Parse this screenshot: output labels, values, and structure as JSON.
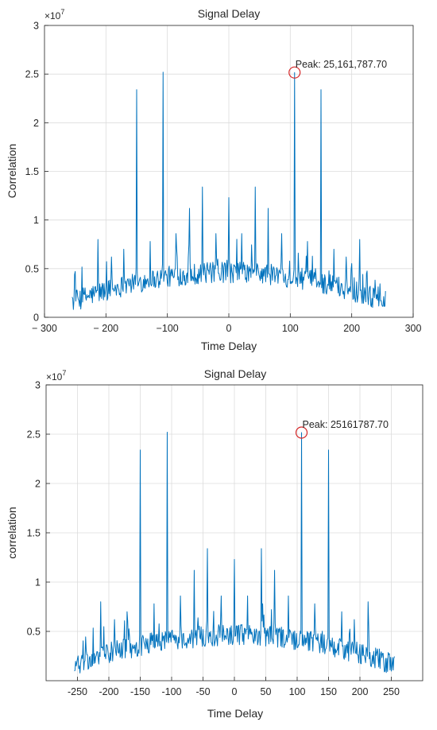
{
  "figures": [
    {
      "title": "Signal Delay",
      "xlabel": "Time Delay",
      "ylabel": "Correlation",
      "exponent_base": "×10",
      "exponent_power": "7",
      "annotation": "Peak: 25,161,787.70"
    },
    {
      "title": "Signal Delay",
      "xlabel": "Time Delay",
      "ylabel": "correlation",
      "exponent_base": "×10",
      "exponent_power": "7",
      "annotation": "Peak: 25161787.70"
    }
  ],
  "colors": {
    "line": "#0072BD",
    "marker": "#D62728",
    "grid": "#DCDCDC",
    "axis": "#262626"
  },
  "chart_data": [
    {
      "type": "line",
      "title": "Signal Delay",
      "xlabel": "Time Delay",
      "ylabel": "Correlation",
      "xlim": [
        -300,
        300
      ],
      "ylim": [
        0,
        30000000
      ],
      "x_ticks": [
        -300,
        -200,
        -100,
        0,
        100,
        200,
        300
      ],
      "x_tick_labels": [
        "− 300",
        "− 200",
        "−100",
        "0",
        "100",
        "200",
        "300"
      ],
      "y_ticks": [
        0,
        5000000,
        10000000,
        15000000,
        20000000,
        25000000,
        30000000
      ],
      "y_tick_labels": [
        "0",
        "0.5",
        "1",
        "1.5",
        "2",
        "2.5",
        "3"
      ],
      "grid": true,
      "series": [
        {
          "x_range": [
            -255,
            255
          ],
          "baseline": {
            "center": 4500000,
            "edge": 1500000
          },
          "peaks": [
            {
              "x": -213,
              "y": 8000000
            },
            {
              "x": -191,
              "y": 6200000
            },
            {
              "x": -171,
              "y": 7000000
            },
            {
              "x": -150,
              "y": 23400000
            },
            {
              "x": -128,
              "y": 7800000
            },
            {
              "x": -107,
              "y": 25200000
            },
            {
              "x": -86,
              "y": 8600000
            },
            {
              "x": -64,
              "y": 11200000
            },
            {
              "x": -43,
              "y": 13400000
            },
            {
              "x": -21,
              "y": 8600000
            },
            {
              "x": 0,
              "y": 12300000
            },
            {
              "x": 21,
              "y": 8600000
            },
            {
              "x": 43,
              "y": 13400000
            },
            {
              "x": 64,
              "y": 11200000
            },
            {
              "x": 86,
              "y": 8600000
            },
            {
              "x": 107,
              "y": 25161787.7
            },
            {
              "x": 128,
              "y": 7800000
            },
            {
              "x": 150,
              "y": 23400000
            },
            {
              "x": 171,
              "y": 7000000
            },
            {
              "x": 191,
              "y": 6200000
            },
            {
              "x": 213,
              "y": 8000000
            }
          ]
        }
      ],
      "annotation": {
        "text": "Peak: 25,161,787.70",
        "x": 107,
        "y": 25161787.7
      }
    },
    {
      "type": "line",
      "title": "Signal Delay",
      "xlabel": "Time Delay",
      "ylabel": "correlation",
      "xlim": [
        -300,
        300
      ],
      "ylim": [
        0,
        30000000
      ],
      "x_ticks": [
        -250,
        -200,
        -150,
        -100,
        -50,
        0,
        50,
        100,
        150,
        200,
        250
      ],
      "x_tick_labels": [
        "-250",
        "-200",
        "-150",
        "-100",
        "-50",
        "0",
        "50",
        "100",
        "150",
        "200",
        "250"
      ],
      "y_ticks": [
        5000000,
        10000000,
        15000000,
        20000000,
        25000000,
        30000000
      ],
      "y_tick_labels": [
        "0.5",
        "1",
        "1.5",
        "2",
        "2.5",
        "3"
      ],
      "grid": true,
      "series": [
        {
          "x_range": [
            -255,
            255
          ],
          "baseline": {
            "center": 4500000,
            "edge": 1500000
          },
          "peaks": [
            {
              "x": -213,
              "y": 8000000
            },
            {
              "x": -191,
              "y": 6200000
            },
            {
              "x": -171,
              "y": 7000000
            },
            {
              "x": -150,
              "y": 23400000
            },
            {
              "x": -128,
              "y": 7800000
            },
            {
              "x": -107,
              "y": 25200000
            },
            {
              "x": -86,
              "y": 8600000
            },
            {
              "x": -64,
              "y": 11200000
            },
            {
              "x": -43,
              "y": 13400000
            },
            {
              "x": -21,
              "y": 8600000
            },
            {
              "x": 0,
              "y": 12300000
            },
            {
              "x": 21,
              "y": 8600000
            },
            {
              "x": 43,
              "y": 13400000
            },
            {
              "x": 64,
              "y": 11200000
            },
            {
              "x": 86,
              "y": 8600000
            },
            {
              "x": 107,
              "y": 25161787.7
            },
            {
              "x": 128,
              "y": 7800000
            },
            {
              "x": 150,
              "y": 23400000
            },
            {
              "x": 171,
              "y": 7000000
            },
            {
              "x": 191,
              "y": 6200000
            },
            {
              "x": 213,
              "y": 8000000
            }
          ]
        }
      ],
      "annotation": {
        "text": "Peak: 25161787.70",
        "x": 107,
        "y": 25161787.7
      }
    }
  ]
}
